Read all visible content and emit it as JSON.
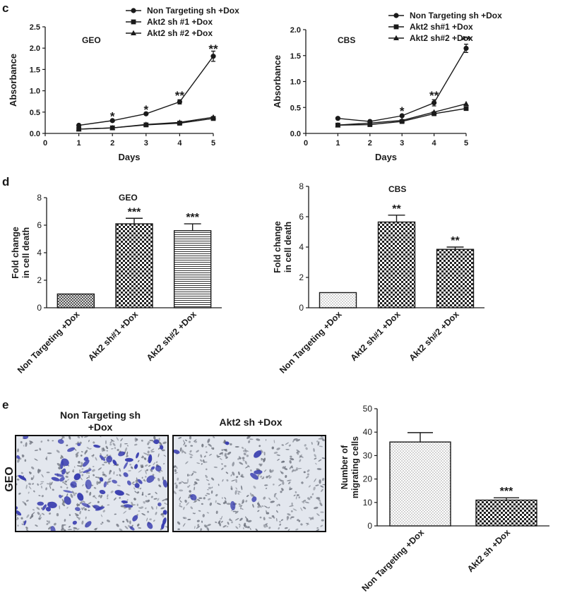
{
  "panel_labels": {
    "c": "c",
    "d": "d",
    "e": "e"
  },
  "colors": {
    "ink": "#1a1a1a",
    "stain": "#3a3fb0",
    "cell": "#6a6f7a",
    "membrane": "#e3e7ee"
  },
  "micrographs": {
    "row_label": "GEO",
    "left_title_line1": "Non Targeting sh",
    "left_title_line2": "+Dox",
    "right_title": "Akt2 sh +Dox"
  },
  "chart_data": [
    {
      "id": "c-geo",
      "type": "line",
      "annotation": "GEO",
      "xlabel": "Days",
      "ylabel": "Absorbance",
      "xlim": [
        0,
        5
      ],
      "ylim": [
        0,
        2.5
      ],
      "xticks": [
        "0",
        "1",
        "2",
        "3",
        "4",
        "5"
      ],
      "yticks": [
        "0.0",
        "0.5",
        "1.0",
        "1.5",
        "2.0",
        "2.5"
      ],
      "x": [
        1,
        2,
        3,
        4,
        5
      ],
      "legend_position": "top",
      "series": [
        {
          "name": "Non Targeting sh +Dox",
          "marker": "circle",
          "values": [
            0.19,
            0.3,
            0.46,
            0.74,
            1.81
          ],
          "errors": [
            0.02,
            0.02,
            0.02,
            0.05,
            0.12
          ]
        },
        {
          "name": "Akt2 sh #1 +Dox",
          "marker": "square",
          "values": [
            0.1,
            0.13,
            0.2,
            0.24,
            0.35
          ],
          "errors": [
            0.01,
            0.01,
            0.01,
            0.01,
            0.02
          ]
        },
        {
          "name": "Akt2 sh #2 +Dox",
          "marker": "triangle",
          "values": [
            0.1,
            0.13,
            0.21,
            0.26,
            0.38
          ],
          "errors": [
            0.01,
            0.01,
            0.01,
            0.01,
            0.02
          ]
        }
      ],
      "significance": [
        {
          "x": 2,
          "text": "*",
          "y": 0.44
        },
        {
          "x": 3,
          "text": "*",
          "y": 0.6
        },
        {
          "x": 4,
          "text": "**",
          "y": 0.93
        },
        {
          "x": 5,
          "text": "**",
          "y": 2.02
        }
      ]
    },
    {
      "id": "c-cbs",
      "type": "line",
      "annotation": "CBS",
      "xlabel": "Days",
      "ylabel": "Absorbance",
      "xlim": [
        0,
        5
      ],
      "ylim": [
        0,
        2.0
      ],
      "xticks": [
        "0",
        "1",
        "2",
        "3",
        "4",
        "5"
      ],
      "yticks": [
        "0.0",
        "0.5",
        "1.0",
        "1.5",
        "2.0"
      ],
      "x": [
        1,
        2,
        3,
        4,
        5
      ],
      "legend_position": "top",
      "series": [
        {
          "name": "Non Targeting sh +Dox",
          "marker": "circle",
          "values": [
            0.29,
            0.23,
            0.34,
            0.59,
            1.64
          ],
          "errors": [
            0.02,
            0.02,
            0.02,
            0.06,
            0.08
          ]
        },
        {
          "name": "Akt2 sh#1 +Dox",
          "marker": "square",
          "values": [
            0.16,
            0.17,
            0.23,
            0.38,
            0.48
          ],
          "errors": [
            0.01,
            0.01,
            0.01,
            0.02,
            0.02
          ]
        },
        {
          "name": "Akt2 sh#2 +Dox",
          "marker": "triangle",
          "values": [
            0.16,
            0.2,
            0.25,
            0.41,
            0.57
          ],
          "errors": [
            0.01,
            0.01,
            0.01,
            0.02,
            0.02
          ]
        }
      ],
      "significance": [
        {
          "x": 3,
          "text": "*",
          "y": 0.46
        },
        {
          "x": 4,
          "text": "**",
          "y": 0.76
        },
        {
          "x": 5,
          "text": "**",
          "y": 1.83
        }
      ]
    },
    {
      "id": "d-geo",
      "type": "bar",
      "annotation": "GEO",
      "ylabel": "Fold change in cell death",
      "ylim": [
        0,
        8
      ],
      "yticks": [
        "0",
        "2",
        "4",
        "6",
        "8"
      ],
      "categories": [
        "Non Targeting +Dox",
        "Akt2 sh#1 +Dox",
        "Akt2 sh#2 +Dox"
      ],
      "values": [
        1.0,
        6.1,
        5.6
      ],
      "errors": [
        0.0,
        0.4,
        0.5
      ],
      "patterns": [
        "fine-check",
        "check",
        "hlines"
      ],
      "significance": [
        "",
        "***",
        "***"
      ]
    },
    {
      "id": "d-cbs",
      "type": "bar",
      "annotation": "CBS",
      "ylabel": "Fold change in cell death",
      "ylim": [
        0,
        8
      ],
      "yticks": [
        "0",
        "2",
        "4",
        "6",
        "8"
      ],
      "categories": [
        "Non Targeting +Dox",
        "Akt2 sh#1 +Dox",
        "Akt2 sh#2 +Dox"
      ],
      "values": [
        1.0,
        5.65,
        3.85
      ],
      "errors": [
        0.0,
        0.45,
        0.15
      ],
      "patterns": [
        "dots",
        "check",
        "check"
      ],
      "significance": [
        "",
        "**",
        "**"
      ]
    },
    {
      "id": "e-geo",
      "type": "bar",
      "annotation": "",
      "ylabel": "Number of migrating cells",
      "ylim": [
        0,
        50
      ],
      "yticks": [
        "0",
        "10",
        "20",
        "30",
        "40",
        "50"
      ],
      "categories": [
        "Non Targeting +Dox",
        "Akt2 sh +Dox"
      ],
      "values": [
        35.8,
        11.0
      ],
      "errors": [
        4.0,
        1.0
      ],
      "patterns": [
        "dots",
        "check"
      ],
      "significance": [
        "",
        "***"
      ]
    }
  ]
}
